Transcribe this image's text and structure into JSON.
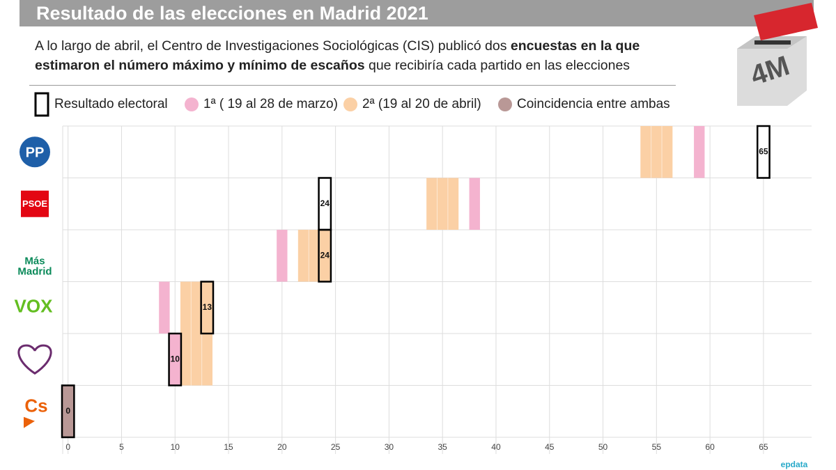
{
  "chart_data": {
    "type": "range",
    "title": "Resultado de las elecciones en Madrid 2021",
    "subtitle": [
      {
        "text": "A lo largo de abril, el Centro de Investigaciones Sociológicas (CIS) publicó dos ",
        "bold": false
      },
      {
        "text": "encuestas en la que estimaron el número máximo y mínimo de escaños",
        "bold": true
      },
      {
        "text": " que recibiría cada partido en las elecciones",
        "bold": false
      }
    ],
    "logo": "4M",
    "source": "epdata",
    "categories": [
      "PP",
      "PSOE",
      "Más Madrid",
      "VOX",
      null,
      "Cs"
    ],
    "result": {
      "name": "Resultado electoral",
      "values": [
        65,
        24,
        24,
        13,
        10,
        0
      ]
    },
    "series": [
      {
        "name": "1ª ( 19 al 28 de marzo)",
        "color": "#f4b3cf",
        "min": [
          59,
          38,
          20,
          9,
          10,
          null
        ],
        "max": [
          59,
          38,
          20,
          9,
          10,
          null
        ]
      },
      {
        "name": "2ª (19 al 20 de abril)",
        "color": "#fbd0a5",
        "min": [
          54,
          34,
          22,
          11,
          11,
          null
        ],
        "max": [
          56,
          36,
          24,
          13,
          13,
          null
        ]
      },
      {
        "name": "Coincidencia entre ambas",
        "color": "#b99896",
        "min": [
          null,
          null,
          null,
          null,
          null,
          0
        ],
        "max": [
          null,
          null,
          null,
          null,
          null,
          0
        ]
      }
    ],
    "xlim": [
      -0.5,
      69.5
    ],
    "xticks": [
      0,
      5,
      10,
      15,
      20,
      25,
      30,
      35,
      40,
      45,
      50,
      55,
      60,
      65
    ],
    "grid": true
  }
}
